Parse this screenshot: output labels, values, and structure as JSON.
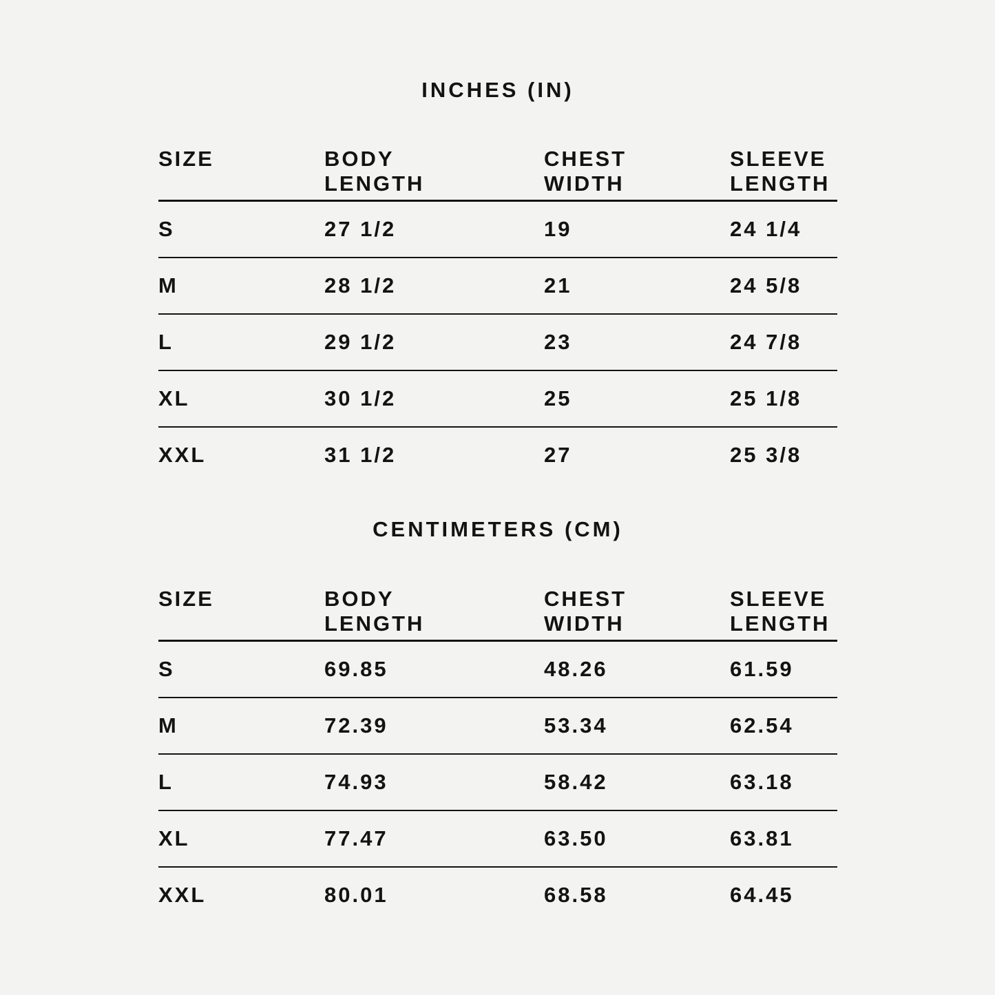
{
  "page": {
    "background_color": "#f3f3f1",
    "text_color": "#131313",
    "rule_color": "#131313"
  },
  "chart_data": [
    {
      "type": "table",
      "title": "INCHES (IN)",
      "unit": "in",
      "columns": [
        {
          "line1": "SIZE",
          "line2": ""
        },
        {
          "line1": "BODY",
          "line2": "LENGTH"
        },
        {
          "line1": "CHEST",
          "line2": "WIDTH"
        },
        {
          "line1": "SLEEVE",
          "line2": "LENGTH"
        }
      ],
      "rows": [
        {
          "size": "S",
          "body_length": "27 1/2",
          "chest_width": "19",
          "sleeve_length": "24 1/4"
        },
        {
          "size": "M",
          "body_length": "28 1/2",
          "chest_width": "21",
          "sleeve_length": "24 5/8"
        },
        {
          "size": "L",
          "body_length": "29 1/2",
          "chest_width": "23",
          "sleeve_length": "24 7/8"
        },
        {
          "size": "XL",
          "body_length": "30 1/2",
          "chest_width": "25",
          "sleeve_length": "25 1/8"
        },
        {
          "size": "XXL",
          "body_length": "31 1/2",
          "chest_width": "27",
          "sleeve_length": "25 3/8"
        }
      ]
    },
    {
      "type": "table",
      "title": "CENTIMETERS (CM)",
      "unit": "cm",
      "columns": [
        {
          "line1": "SIZE",
          "line2": ""
        },
        {
          "line1": "BODY",
          "line2": "LENGTH"
        },
        {
          "line1": "CHEST",
          "line2": "WIDTH"
        },
        {
          "line1": "SLEEVE",
          "line2": "LENGTH"
        }
      ],
      "rows": [
        {
          "size": "S",
          "body_length": "69.85",
          "chest_width": "48.26",
          "sleeve_length": "61.59"
        },
        {
          "size": "M",
          "body_length": "72.39",
          "chest_width": "53.34",
          "sleeve_length": "62.54"
        },
        {
          "size": "L",
          "body_length": "74.93",
          "chest_width": "58.42",
          "sleeve_length": "63.18"
        },
        {
          "size": "XL",
          "body_length": "77.47",
          "chest_width": "63.50",
          "sleeve_length": "63.81"
        },
        {
          "size": "XXL",
          "body_length": "80.01",
          "chest_width": "68.58",
          "sleeve_length": "64.45"
        }
      ]
    }
  ]
}
